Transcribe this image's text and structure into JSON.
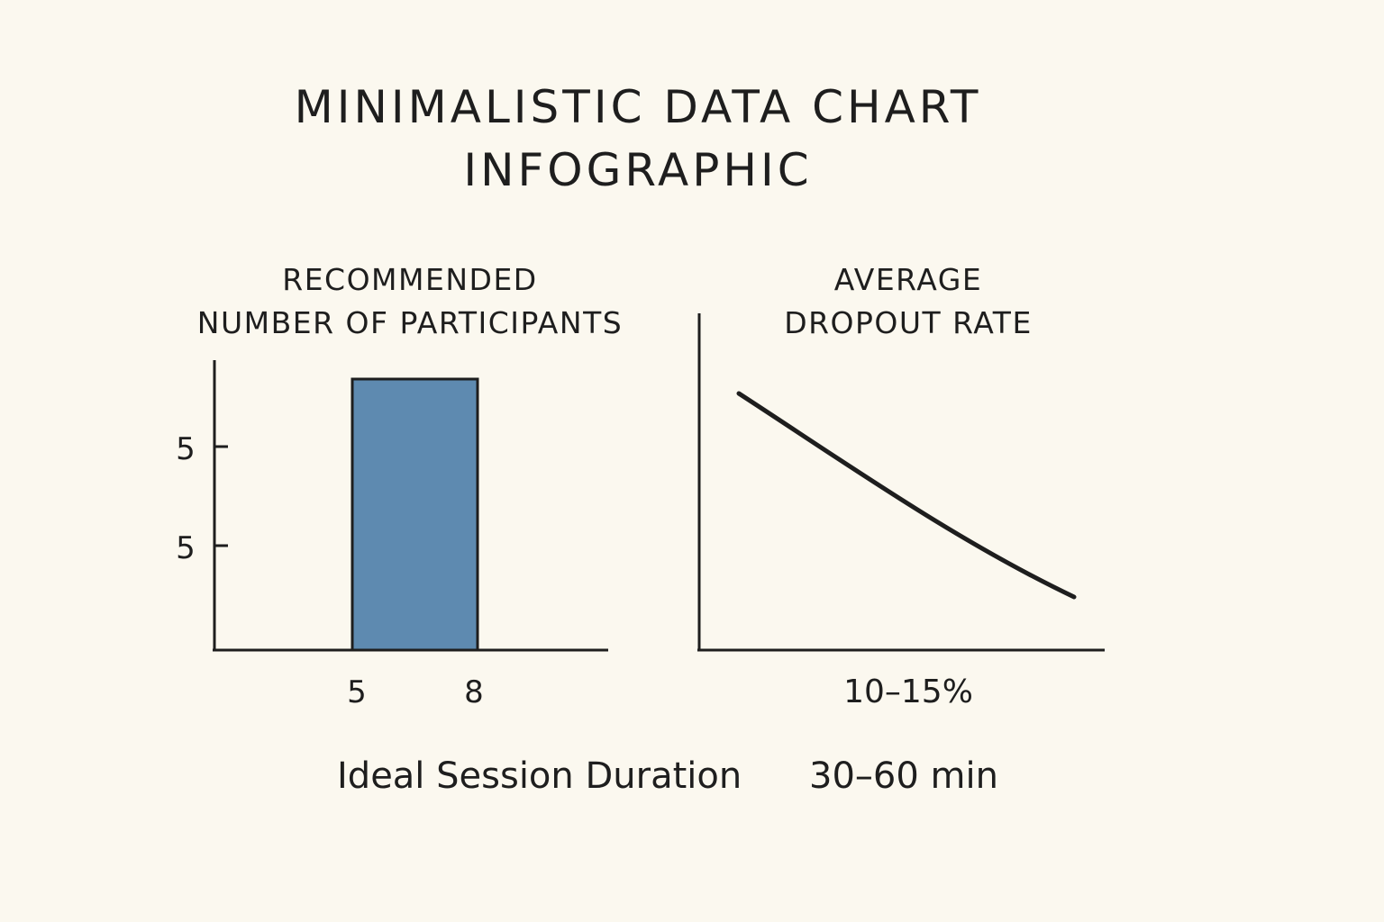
{
  "title": {
    "line1": "MINIMALISTIC DATA CHART",
    "line2": "INFOGRAPHIC"
  },
  "colors": {
    "background": "#fbf8ef",
    "bar": "#5e8ab0",
    "ink": "#1e1e1e"
  },
  "chart_data": [
    {
      "type": "bar",
      "title_lines": [
        "RECOMMENDED",
        "NUMBER OF PARTICIPANTS"
      ],
      "bar": {
        "from": 5,
        "to": 8
      },
      "x_tick_labels": [
        "5",
        "8"
      ],
      "y_tick_labels": [
        "5",
        "5"
      ],
      "xlabel": "",
      "ylabel": "",
      "grid": false,
      "legend": "none"
    },
    {
      "type": "line",
      "title_lines": [
        "AVERAGE",
        "DROPOUT RATE"
      ],
      "trend": "decreasing",
      "x_label": "10–15%",
      "grid": false,
      "legend": "none"
    }
  ],
  "footer": {
    "label": "Ideal Session Duration",
    "value": "30–60 min"
  }
}
